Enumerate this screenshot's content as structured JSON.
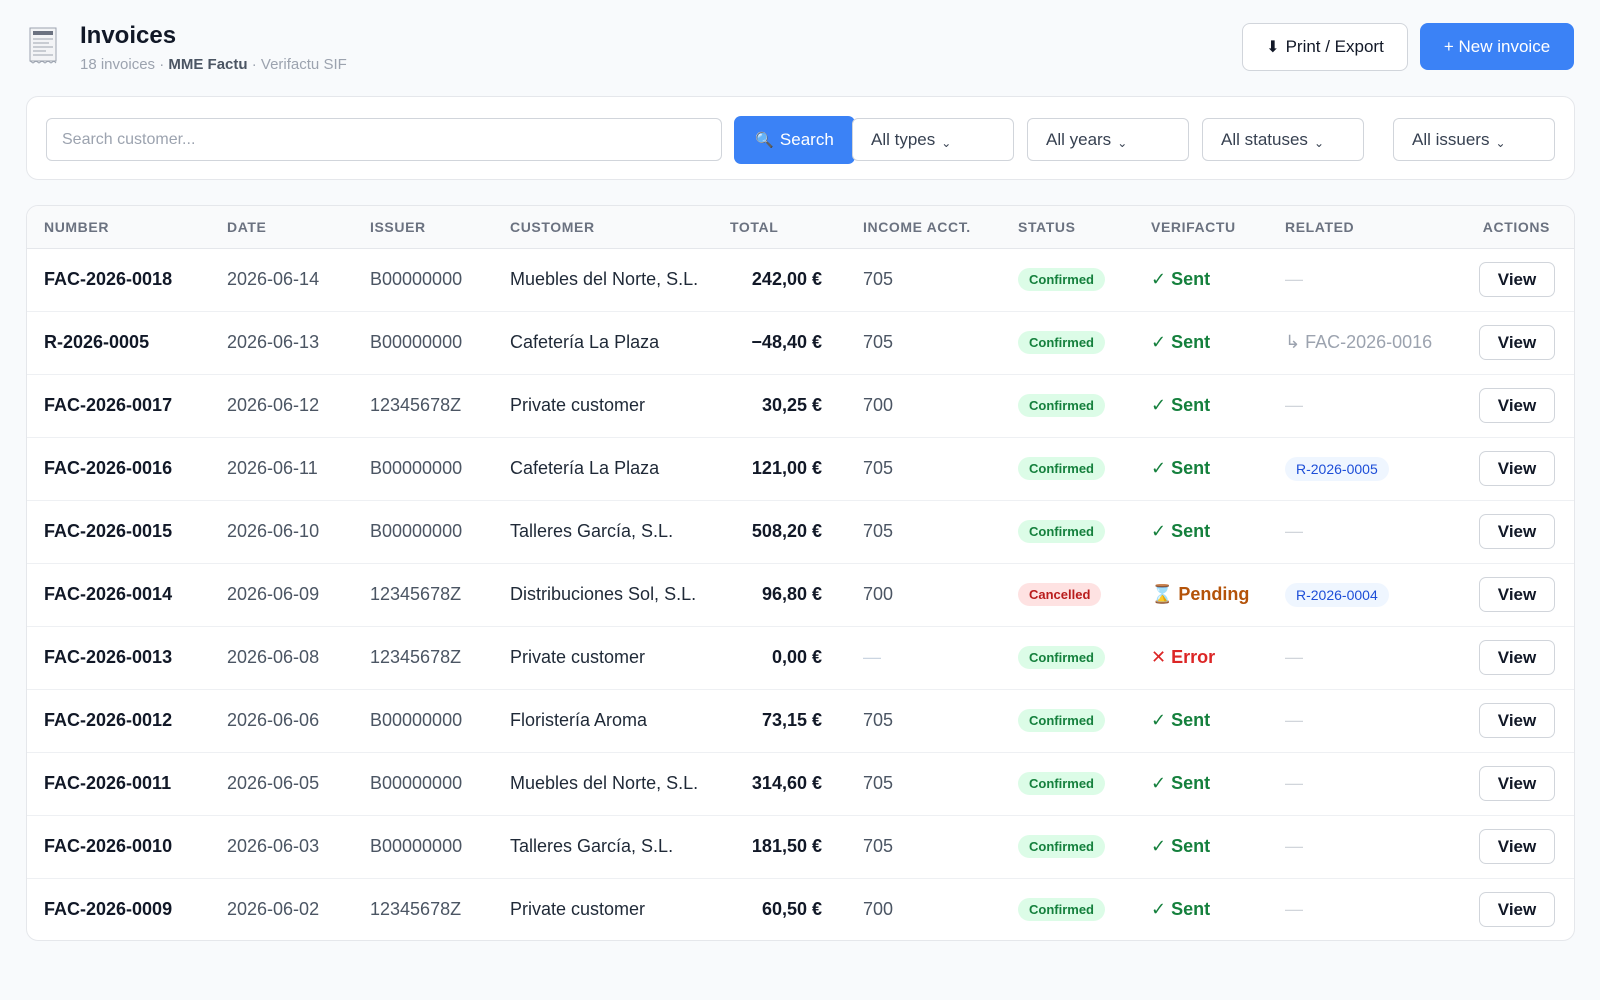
{
  "header": {
    "title": "Invoices",
    "count_text": "18 invoices",
    "separator": " · ",
    "brand": "MME Factu",
    "system": "Verifactu SIF",
    "logo_icon": "receipt-icon",
    "print_label": "Print / Export",
    "print_icon": "download-arrow-icon",
    "new_label": "+ New invoice"
  },
  "filters": {
    "search_placeholder": "Search customer...",
    "search_value": "",
    "search_button": "Search",
    "search_icon": "magnifier-icon",
    "type": "All types",
    "year": "All years",
    "status": "All statuses",
    "issuer": "All issuers"
  },
  "table": {
    "columns": [
      "NUMBER",
      "DATE",
      "ISSUER",
      "CUSTOMER",
      "TOTAL",
      "INCOME ACCT.",
      "STATUS",
      "VERIFACTU",
      "RELATED",
      "ACTIONS"
    ],
    "rows": [
      {
        "number": "FAC-2026-0018",
        "date": "2026-06-14",
        "issuer": "B00000000",
        "customer": "Muebles del Norte, S.L.",
        "total": "242,00 €",
        "account": "705",
        "status": "Confirmed",
        "verifactu": "✓ Sent",
        "related": "—",
        "action": "View"
      },
      {
        "number": "R-2026-0005",
        "date": "2026-06-13",
        "issuer": "B00000000",
        "customer": "Cafetería La Plaza",
        "total": "−48,40 €",
        "account": "705",
        "status": "Confirmed",
        "verifactu": "✓ Sent",
        "related": "↳ FAC-2026-0016",
        "action": "View"
      },
      {
        "number": "FAC-2026-0017",
        "date": "2026-06-12",
        "issuer": "12345678Z",
        "customer": "Private customer",
        "total": "30,25 €",
        "account": "700",
        "status": "Confirmed",
        "verifactu": "✓ Sent",
        "related": "—",
        "action": "View"
      },
      {
        "number": "FAC-2026-0016",
        "date": "2026-06-11",
        "issuer": "B00000000",
        "customer": "Cafetería La Plaza",
        "total": "121,00 €",
        "account": "705",
        "status": "Confirmed",
        "verifactu": "✓ Sent",
        "related": "R-2026-0005",
        "action": "View"
      },
      {
        "number": "FAC-2026-0015",
        "date": "2026-06-10",
        "issuer": "B00000000",
        "customer": "Talleres García, S.L.",
        "total": "508,20 €",
        "account": "705",
        "status": "Confirmed",
        "verifactu": "✓ Sent",
        "related": "—",
        "action": "View"
      },
      {
        "number": "FAC-2026-0014",
        "date": "2026-06-09",
        "issuer": "12345678Z",
        "customer": "Distribuciones Sol, S.L.",
        "total": "96,80 €",
        "account": "700",
        "status": "Cancelled",
        "verifactu": "⌛ Pending",
        "related": "R-2026-0004",
        "action": "View"
      },
      {
        "number": "FAC-2026-0013",
        "date": "2026-06-08",
        "issuer": "12345678Z",
        "customer": "Private customer",
        "total": "0,00 €",
        "account": "—",
        "status": "Confirmed",
        "verifactu": "✕ Error",
        "related": "—",
        "action": "View"
      },
      {
        "number": "FAC-2026-0012",
        "date": "2026-06-06",
        "issuer": "B00000000",
        "customer": "Floristería Aroma",
        "total": "73,15 €",
        "account": "705",
        "status": "Confirmed",
        "verifactu": "✓ Sent",
        "related": "—",
        "action": "View"
      },
      {
        "number": "FAC-2026-0011",
        "date": "2026-06-05",
        "issuer": "B00000000",
        "customer": "Muebles del Norte, S.L.",
        "total": "314,60 €",
        "account": "705",
        "status": "Confirmed",
        "verifactu": "✓ Sent",
        "related": "—",
        "action": "View"
      },
      {
        "number": "FAC-2026-0010",
        "date": "2026-06-03",
        "issuer": "B00000000",
        "customer": "Talleres García, S.L.",
        "total": "181,50 €",
        "account": "705",
        "status": "Confirmed",
        "verifactu": "✓ Sent",
        "related": "—",
        "action": "View"
      },
      {
        "number": "FAC-2026-0009",
        "date": "2026-06-02",
        "issuer": "12345678Z",
        "customer": "Private customer",
        "total": "60,50 €",
        "account": "700",
        "status": "Confirmed",
        "verifactu": "✓ Sent",
        "related": "—",
        "action": "View"
      }
    ]
  },
  "colors": {
    "accent": "#3b82f6",
    "sent": "#15803d",
    "pending": "#b45309",
    "error": "#dc2626",
    "confirmed_bg": "#dcfce7",
    "cancelled_bg": "#fee2e2"
  }
}
